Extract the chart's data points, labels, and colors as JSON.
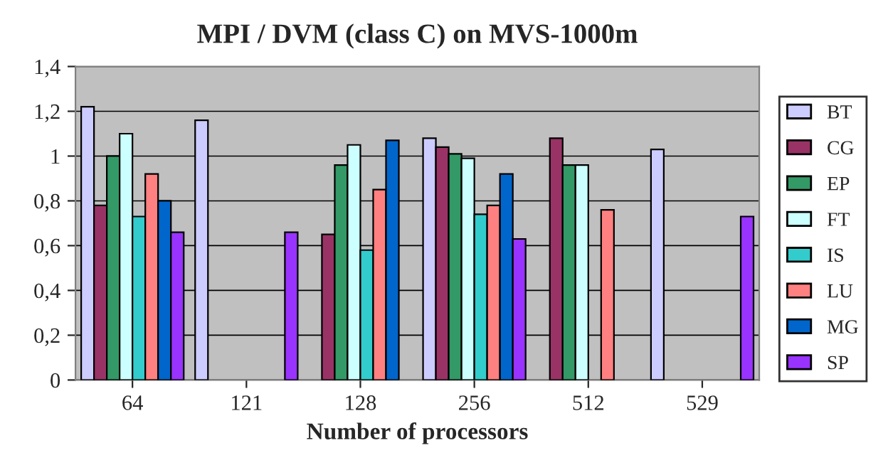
{
  "chart_data": {
    "type": "bar",
    "title": "MPI / DVM (class C) on MVS-1000m",
    "xlabel": "Number of processors",
    "categories": [
      "64",
      "121",
      "128",
      "256",
      "512",
      "529"
    ],
    "series": [
      {
        "name": "BT",
        "color": "#ccccff",
        "values": [
          1.22,
          1.16,
          null,
          1.08,
          null,
          1.03
        ]
      },
      {
        "name": "CG",
        "color": "#993366",
        "values": [
          0.78,
          null,
          0.65,
          1.04,
          1.08,
          null
        ]
      },
      {
        "name": "EP",
        "color": "#339966",
        "values": [
          1.0,
          null,
          0.96,
          1.01,
          0.96,
          null
        ]
      },
      {
        "name": "FT",
        "color": "#ccffff",
        "values": [
          1.1,
          null,
          1.05,
          0.99,
          0.96,
          null
        ]
      },
      {
        "name": "IS",
        "color": "#33cccc",
        "values": [
          0.73,
          null,
          0.58,
          0.74,
          null,
          null
        ]
      },
      {
        "name": "LU",
        "color": "#ff8080",
        "values": [
          0.92,
          null,
          0.85,
          0.78,
          0.76,
          null
        ]
      },
      {
        "name": "MG",
        "color": "#0066cc",
        "values": [
          0.8,
          null,
          1.07,
          0.92,
          null,
          null
        ]
      },
      {
        "name": "SP",
        "color": "#9933ff",
        "values": [
          0.66,
          0.66,
          null,
          0.63,
          null,
          0.73
        ]
      }
    ],
    "ylim": [
      0,
      1.4
    ],
    "yticks": [
      0,
      {
        "value": 0.2,
        "label": "0,2"
      },
      {
        "value": 0.4,
        "label": "0,4"
      },
      {
        "value": 0.6,
        "label": "0,6"
      },
      {
        "value": 0.8,
        "label": "0,8"
      },
      1,
      {
        "value": 1.2,
        "label": "1,2"
      },
      {
        "value": 1.4,
        "label": "1,4"
      }
    ],
    "grid": "y",
    "legend": "right"
  }
}
